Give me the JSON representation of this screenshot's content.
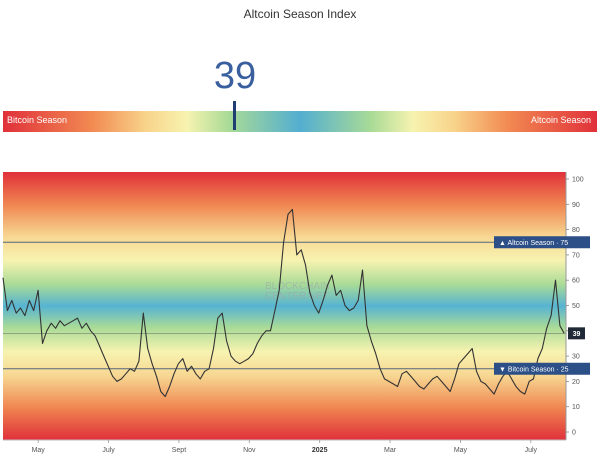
{
  "title": "Altcoin Season Index",
  "current_value": "39",
  "gauge": {
    "left_label": "Bitcoin Season",
    "right_label": "Altcoin Season"
  },
  "watermark": [
    "BLOCKCHAIN",
    "CENTER.NET"
  ],
  "colors": {
    "line": "#333333",
    "ref_line": "#1f3f73",
    "badge": "#2b4f86",
    "value_text": "#3a5f9e",
    "band_red": "#e0303a",
    "band_blue": "#53aed0"
  },
  "chart_data": {
    "type": "line",
    "ylim": [
      0,
      100
    ],
    "y_ticks": [
      "100",
      "90",
      "80",
      "70",
      "60",
      "50",
      "40",
      "30",
      "20",
      "10",
      "0"
    ],
    "x_ticks": [
      {
        "label": "May",
        "x": 1
      },
      {
        "label": "July",
        "x": 3
      },
      {
        "label": "Sept",
        "x": 5
      },
      {
        "label": "Nov",
        "x": 7
      },
      {
        "label": "2025",
        "x": 9,
        "bold": true
      },
      {
        "label": "Mar",
        "x": 11
      },
      {
        "label": "May",
        "x": 13
      },
      {
        "label": "July",
        "x": 15
      }
    ],
    "reference_lines": [
      {
        "value": 75,
        "label": "▲ Altcoin Season · 75"
      },
      {
        "value": 25,
        "label": "▼ Bitcoin Season · 25"
      }
    ],
    "current": {
      "value": 39,
      "label": "39"
    },
    "series": [
      {
        "values": [
          61,
          48,
          52,
          47,
          49,
          46,
          52,
          48,
          56,
          35,
          40,
          43,
          41,
          44,
          42,
          43,
          44,
          45,
          41,
          43,
          40,
          38,
          34,
          30,
          26,
          22,
          20,
          21,
          23,
          25,
          24,
          28,
          47,
          33,
          27,
          22,
          16,
          14,
          18,
          23,
          27,
          29,
          24,
          26,
          23,
          21,
          24,
          25,
          33,
          45,
          47,
          36,
          30,
          28,
          27,
          28,
          29,
          31,
          35,
          38,
          40,
          40,
          48,
          56,
          75,
          86,
          88,
          70,
          72,
          66,
          55,
          50,
          47,
          52,
          58,
          62,
          54,
          56,
          50,
          48,
          49,
          52,
          64,
          42,
          36,
          31,
          25,
          21,
          20,
          19,
          18,
          23,
          24,
          22,
          20,
          18,
          17,
          19,
          21,
          22,
          20,
          18,
          16,
          21,
          27,
          29,
          31,
          33,
          24,
          20,
          19,
          17,
          15,
          19,
          22,
          24,
          21,
          18,
          16,
          15,
          20,
          21,
          29,
          33,
          41,
          46,
          60,
          42,
          39
        ],
        "x_start": 0,
        "x_end": 15.95
      }
    ]
  }
}
